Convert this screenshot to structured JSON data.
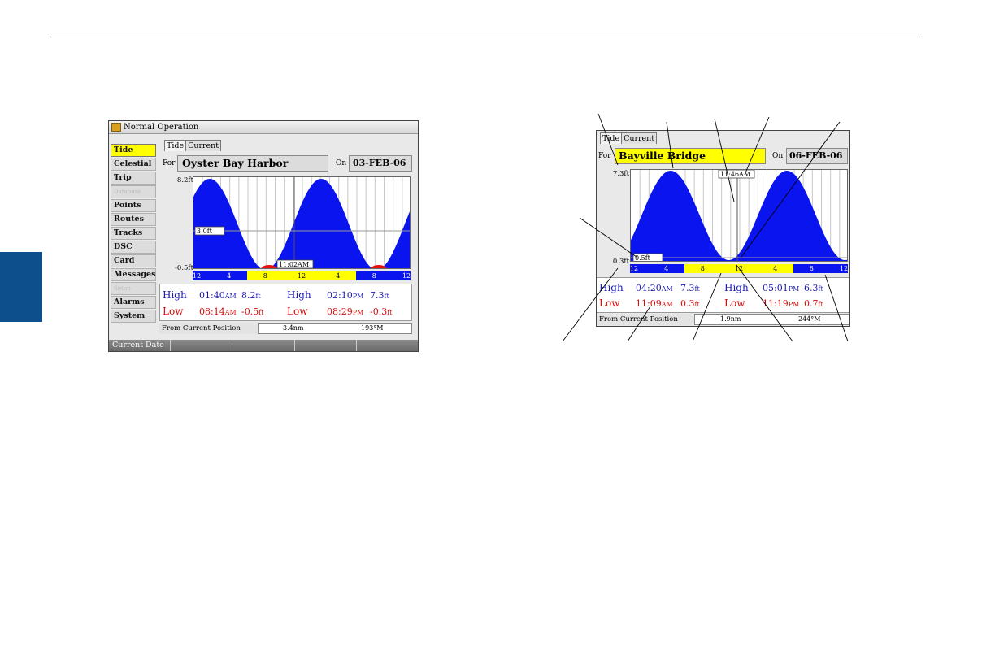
{
  "screen1": {
    "window_title": "Normal Operation",
    "menu": [
      {
        "label": "Tide",
        "state": "selected"
      },
      {
        "label": "Celestial",
        "state": "normal"
      },
      {
        "label": "Trip",
        "state": "normal"
      },
      {
        "label": "Database",
        "state": "disabled"
      },
      {
        "label": "Points",
        "state": "normal"
      },
      {
        "label": "Routes",
        "state": "normal"
      },
      {
        "label": "Tracks",
        "state": "normal"
      },
      {
        "label": "DSC",
        "state": "normal"
      },
      {
        "label": "Card",
        "state": "normal"
      },
      {
        "label": "Messages",
        "state": "normal"
      },
      {
        "label": "Setup",
        "state": "disabled"
      },
      {
        "label": "Alarms",
        "state": "normal"
      },
      {
        "label": "System",
        "state": "normal"
      }
    ],
    "tabs": [
      "Tide",
      "Current"
    ],
    "for_label": "For",
    "station": "Oyster Bay Harbor",
    "on_label": "On",
    "date": "03-FEB-06",
    "y_max_label": "8.2ft",
    "y_min_label": "-0.5ft",
    "cursor_height_label": "3.0ft",
    "cursor_time_label": "11:02AM",
    "hour_labels": [
      "12",
      "4",
      "8",
      "12",
      "4",
      "8",
      "12"
    ],
    "high_label": "High",
    "low_label": "Low",
    "high1_time": "01:40",
    "high1_ampm": "AM",
    "high1_height": "8.2",
    "high1_unit": "ft",
    "high2_time": "02:10",
    "high2_ampm": "PM",
    "high2_height": "7.3",
    "high2_unit": "ft",
    "low1_time": "08:14",
    "low1_ampm": "AM",
    "low1_height": "-0.5",
    "low1_unit": "ft",
    "low2_time": "08:29",
    "low2_ampm": "PM",
    "low2_height": "-0.3",
    "low2_unit": "ft",
    "from_label": "From Current Position",
    "distance": "3.4",
    "distance_unit": "nm",
    "bearing": "193",
    "bearing_unit": "°M",
    "softkeys": [
      "Current Date",
      "",
      "",
      "",
      ""
    ]
  },
  "screen2": {
    "tabs": [
      "Tide",
      "Current"
    ],
    "for_label": "For",
    "station": "Bayville Bridge",
    "on_label": "On",
    "date": "06-FEB-06",
    "y_max_label": "7.3ft",
    "y_min_label": "0.3ft",
    "cursor_height_label": "0.5ft",
    "cursor_time_label": "11:46AM",
    "hour_labels": [
      "12",
      "4",
      "8",
      "12",
      "4",
      "8",
      "12"
    ],
    "high_label": "High",
    "low_label": "Low",
    "high1_time": "04:20",
    "high1_ampm": "AM",
    "high1_height": "7.3",
    "high1_unit": "ft",
    "high2_time": "05:01",
    "high2_ampm": "PM",
    "high2_height": "6.3",
    "high2_unit": "ft",
    "low1_time": "11:09",
    "low1_ampm": "AM",
    "low1_height": "0.3",
    "low1_unit": "ft",
    "low2_time": "11:19",
    "low2_ampm": "PM",
    "low2_height": "0.7",
    "low2_unit": "ft",
    "from_label": "From Current Position",
    "distance": "1.9",
    "distance_unit": "nm",
    "bearing": "244",
    "bearing_unit": "°M"
  },
  "colors": {
    "tide_fill": "#0a14ee",
    "tide_negative": "#e81010",
    "daylight_bar": "#ffff00",
    "night_bar": "#0a14ee",
    "selected_menu": "#ffff00",
    "high_text": "#1a1ab4",
    "low_text": "#d80a0a",
    "section_tab": "#0d4e8c"
  }
}
